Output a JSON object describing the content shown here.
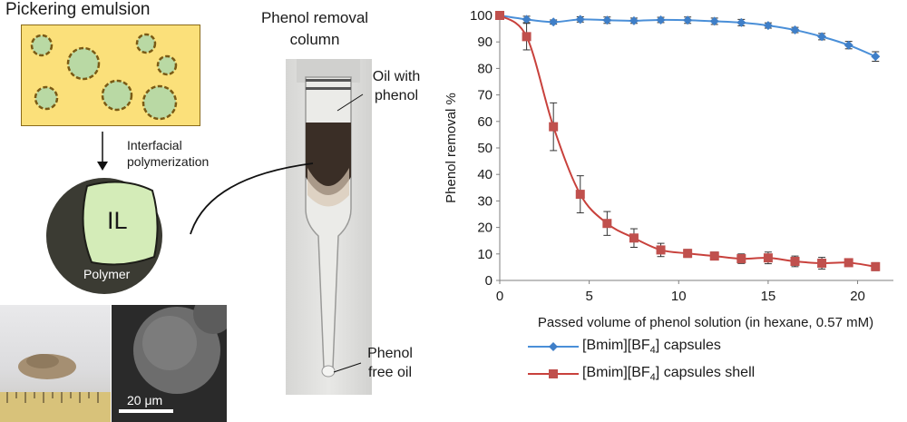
{
  "diagram": {
    "pickering_title": "Pickering emulsion",
    "interfacial_label": "Interfacial polymerization",
    "capsule_core_label": "IL",
    "capsule_shell_label": "Polymer",
    "column_title": "Phenol removal column",
    "oil_with_phenol_label": "Oil with phenol",
    "phenol_free_oil_label": "Phenol free oil",
    "scale_bar_label": "20 μm",
    "colors": {
      "emulsion_bg": "#fbe07a",
      "droplet": "#b9d9a4",
      "capsule_core": "#d4ecb8",
      "capsule_shell": "#3b3b33"
    }
  },
  "chart_data": {
    "type": "line",
    "x": [
      0,
      1.5,
      3,
      4.5,
      6,
      7.5,
      9,
      10.5,
      12,
      13.5,
      15,
      16.5,
      18,
      19.5,
      21
    ],
    "series": [
      {
        "name": "[Bmim][BF4] capsules",
        "name_base": "[Bmim][BF",
        "name_sub": "4",
        "name_end": "] capsules",
        "marker": "diamond",
        "color": "#4a8fd8",
        "values": [
          100,
          98.5,
          97.5,
          98.5,
          98.2,
          98,
          98.3,
          98.2,
          97.8,
          97.3,
          96.2,
          94.5,
          92,
          88.8,
          84.5
        ],
        "errors": [
          0.4,
          1.2,
          0.8,
          1.0,
          1.2,
          1.0,
          1.0,
          1.2,
          1.2,
          1.2,
          1.0,
          1.0,
          1.2,
          1.4,
          1.8
        ]
      },
      {
        "name": "[Bmim][BF4] capsules shell",
        "name_base": "[Bmim][BF",
        "name_sub": "4",
        "name_end": "] capsules shell",
        "marker": "square",
        "color": "#c8413c",
        "values": [
          100,
          92,
          58,
          32.5,
          21.5,
          16,
          11.5,
          10.2,
          9.2,
          8.2,
          8.5,
          7.2,
          6.5,
          6.7,
          5.2
        ],
        "errors": [
          0.5,
          5,
          9,
          7,
          4.5,
          3.5,
          2.5,
          1.5,
          1.5,
          1.8,
          2.2,
          2.0,
          2.2,
          1.0,
          1.5
        ]
      }
    ],
    "title": "",
    "xlabel": "Passed volume of phenol solution (in hexane, 0.57 mM)",
    "ylabel": "Phenol removal %",
    "xlim": [
      0,
      22
    ],
    "ylim": [
      0,
      100
    ],
    "xticks": [
      "0",
      "5",
      "10",
      "15",
      "20"
    ],
    "yticks": [
      "0",
      "10",
      "20",
      "30",
      "40",
      "50",
      "60",
      "70",
      "80",
      "90",
      "100"
    ],
    "grid": false,
    "legend_position": "bottom"
  }
}
